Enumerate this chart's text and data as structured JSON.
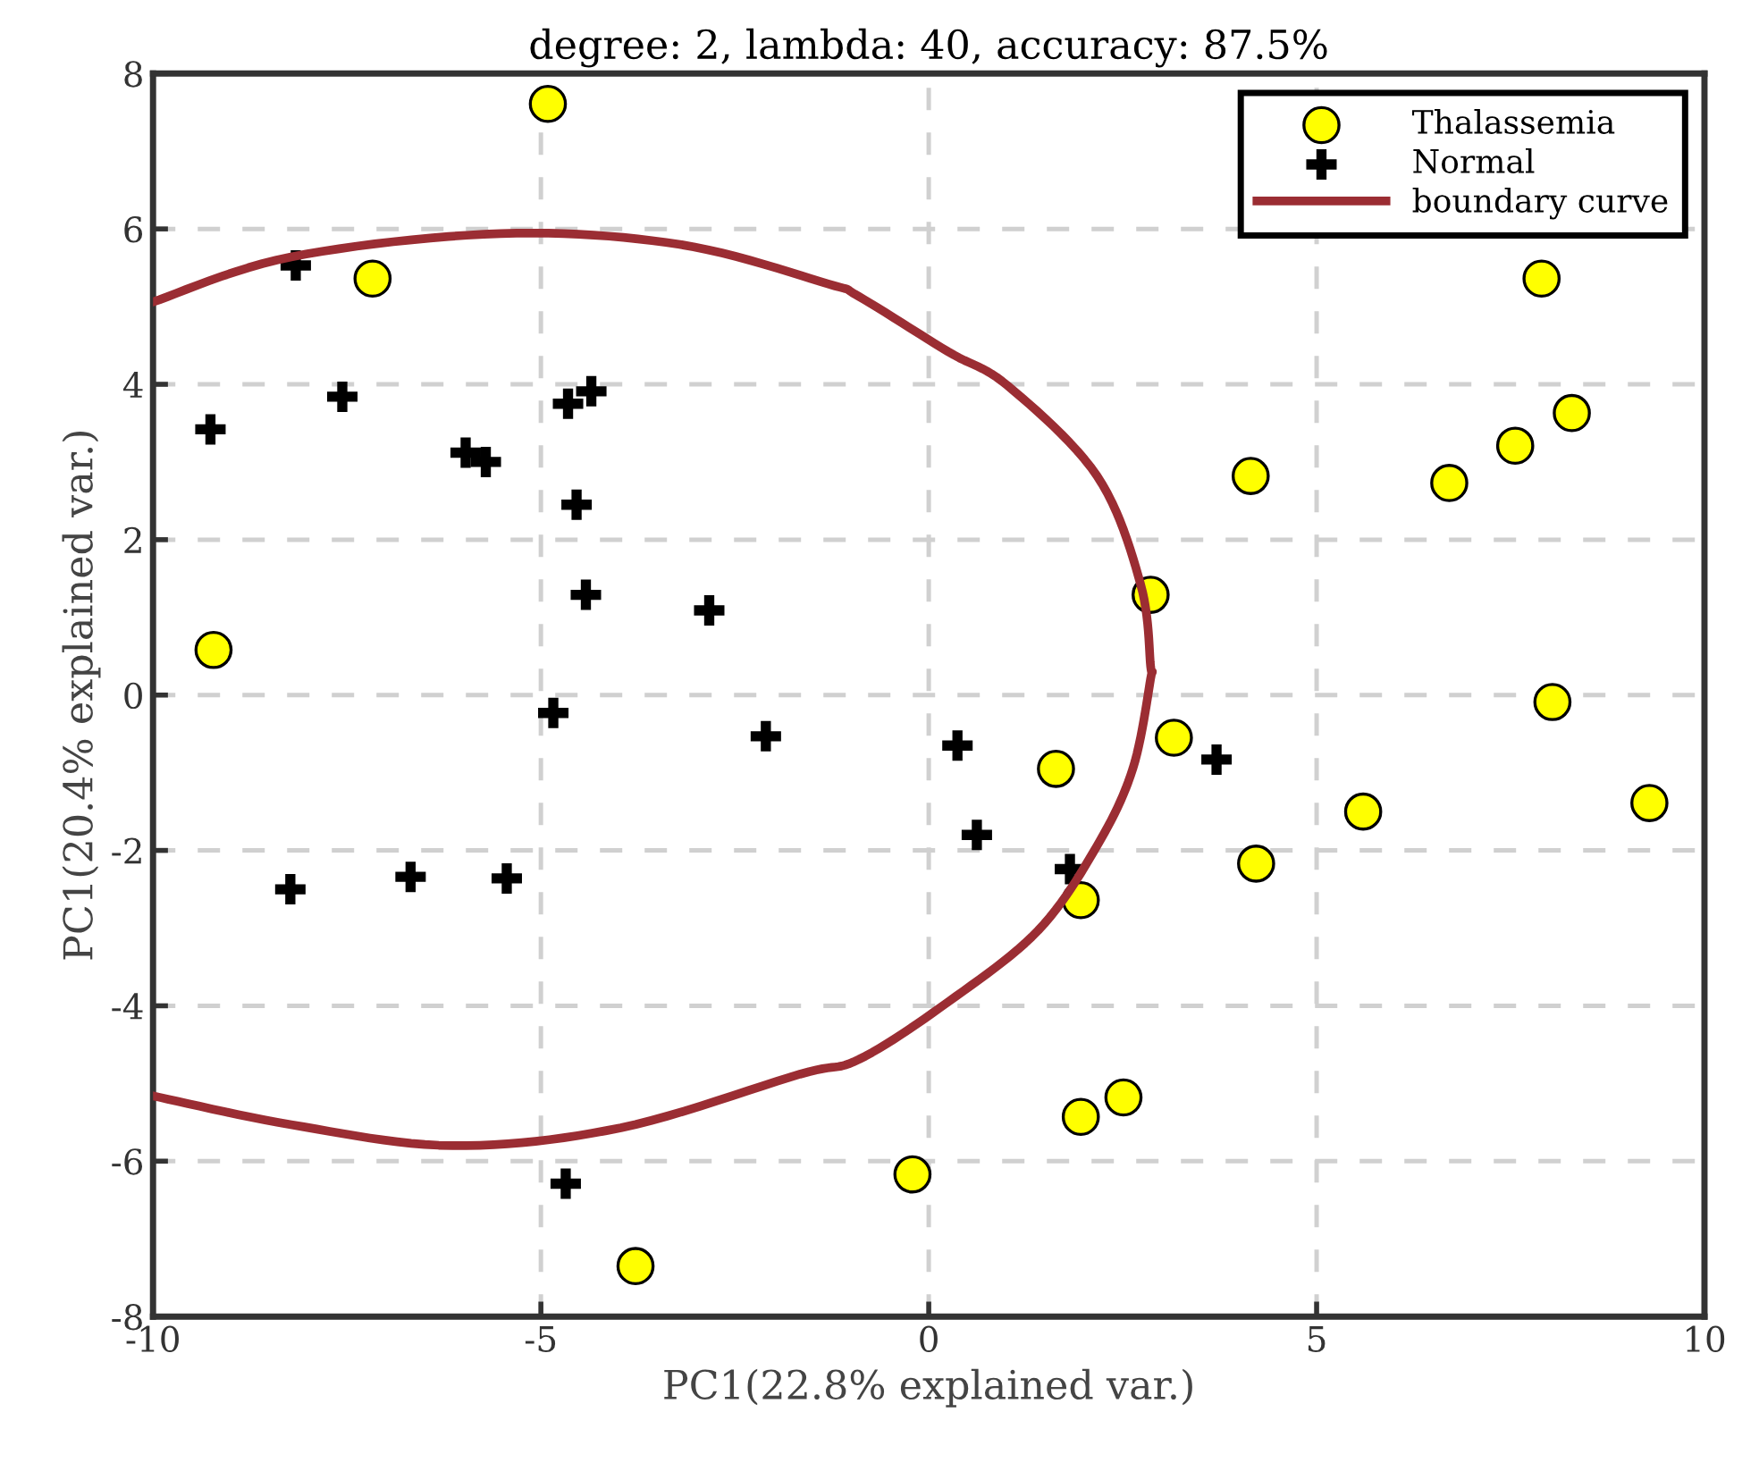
{
  "chart_data": {
    "type": "scatter",
    "title": "degree: 2, lambda: 40, accuracy: 87.5%",
    "xlabel": "PC1(22.8% explained var.)",
    "ylabel": "PC1(20.4% explained var.)",
    "xlim": [
      -10,
      10
    ],
    "ylim": [
      -8,
      8
    ],
    "xticks": [
      -10,
      -5,
      0,
      5,
      10
    ],
    "yticks": [
      -8,
      -6,
      -4,
      -2,
      0,
      2,
      4,
      6,
      8
    ],
    "grid": true,
    "legend": "top right",
    "series": [
      {
        "name": "Thalassemia",
        "marker": "circle",
        "color": "#ffff00",
        "x": [
          -4.91,
          -7.17,
          -9.22,
          7.9,
          8.29,
          7.56,
          6.71,
          4.15,
          2.86,
          3.16,
          8.04,
          9.29,
          1.64,
          5.6,
          4.22,
          1.96,
          2.51,
          1.96,
          -0.21,
          -3.78
        ],
        "values": [
          7.61,
          5.36,
          0.58,
          5.36,
          3.63,
          3.21,
          2.73,
          2.82,
          1.29,
          -0.55,
          -0.09,
          -1.39,
          -0.95,
          -1.5,
          -2.17,
          -2.64,
          -5.18,
          -5.43,
          -6.17,
          -7.35
        ]
      },
      {
        "name": "Normal",
        "marker": "cross",
        "color": "#000000",
        "x": [
          -8.16,
          -9.26,
          -7.56,
          -4.35,
          -4.65,
          -5.97,
          -5.71,
          -4.54,
          -4.42,
          -2.83,
          -4.84,
          -2.1,
          0.37,
          3.71,
          0.62,
          1.82,
          -8.23,
          -6.68,
          -5.44,
          -4.68
        ],
        "values": [
          5.53,
          3.42,
          3.84,
          3.91,
          3.75,
          3.12,
          3.0,
          2.45,
          1.29,
          1.09,
          -0.23,
          -0.53,
          -0.65,
          -0.83,
          -1.8,
          -2.24,
          -2.5,
          -2.34,
          -2.36,
          -6.29
        ]
      },
      {
        "name": "boundary curve",
        "type": "line",
        "marker": "none",
        "line_style": "solid",
        "color": "#9b2d33",
        "x": [
          -10,
          -8.22,
          -5.52,
          -3.21,
          -1.29,
          -0.9,
          0.25,
          1.02,
          2.17,
          2.73,
          2.86,
          2.86,
          2.63,
          2.17,
          1.41,
          0.25,
          -0.9,
          -1.66,
          -3.97,
          -6.14,
          -8.22,
          -10
        ],
        "values": [
          5.06,
          5.64,
          5.94,
          5.8,
          5.29,
          5.13,
          4.42,
          3.98,
          2.82,
          1.43,
          0.37,
          0.21,
          -0.95,
          -1.94,
          -3.03,
          -3.95,
          -4.69,
          -4.88,
          -5.57,
          -5.8,
          -5.53,
          -5.16
        ]
      }
    ]
  }
}
